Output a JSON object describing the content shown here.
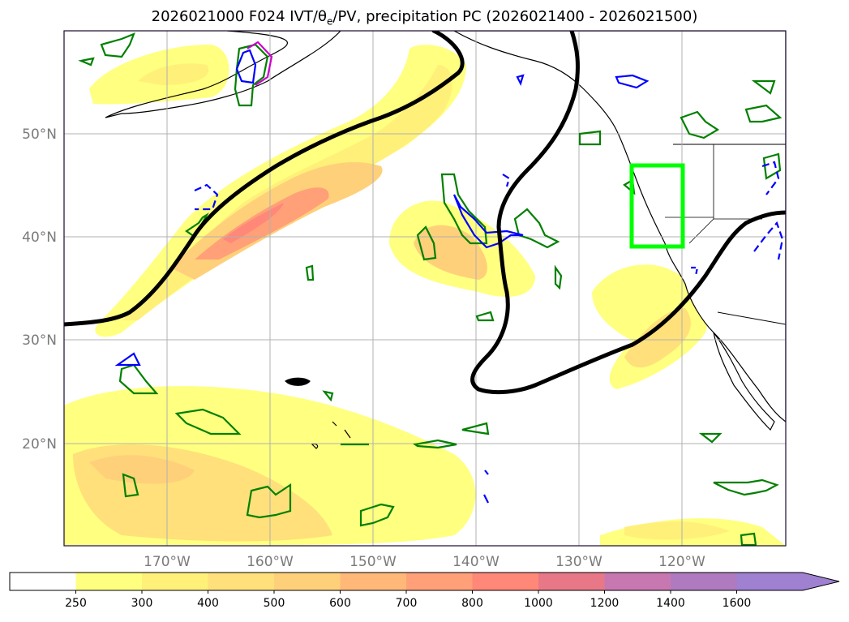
{
  "title": {
    "prefix": "2026021000 F024 IVT/θ",
    "sub": "e",
    "suffix": "/PV, precipitation PC (2026021400 - 2026021500)"
  },
  "map": {
    "lat_labels": [
      "50°N",
      "40°N",
      "30°N",
      "20°N"
    ],
    "lon_labels": [
      "170°W",
      "160°W",
      "150°W",
      "140°W",
      "130°W",
      "120°W"
    ],
    "colors": {
      "theta_e_contour": "#000000",
      "pv_contour": "#0000ff",
      "precip_contour": "#008000",
      "magenta_contour": "#cc00cc",
      "highlight_box": "#00ff00",
      "coastline": "#000000"
    }
  },
  "colorbar": {
    "levels": [
      "250",
      "300",
      "400",
      "500",
      "600",
      "700",
      "800",
      "1000",
      "1200",
      "1400",
      "1600"
    ],
    "colors": [
      "#ffffff",
      "#ffff80",
      "#fff07a",
      "#ffe07a",
      "#ffd07a",
      "#ffb878",
      "#ffa078",
      "#ff8878",
      "#e87888",
      "#c878b0",
      "#b07ac0",
      "#a080d0"
    ],
    "extend": "max"
  }
}
